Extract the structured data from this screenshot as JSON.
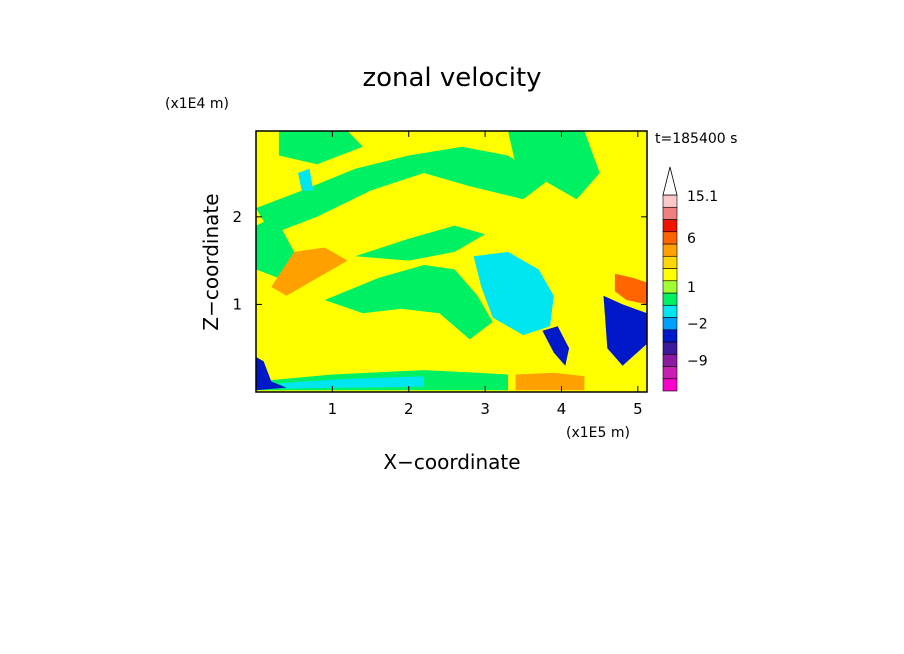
{
  "chart_data": {
    "type": "heatmap",
    "title": "zonal velocity",
    "xlabel": "X−coordinate",
    "ylabel": "Z−coordinate",
    "x_unit": "(x1E5 m)",
    "y_unit": "(x1E4 m)",
    "time_label": "t=185400 s",
    "xlim": [
      0,
      5.12
    ],
    "ylim": [
      0,
      2.98
    ],
    "x_ticks": [
      1,
      2,
      3,
      4,
      5
    ],
    "y_ticks": [
      1,
      2
    ],
    "grid": false,
    "colorbar": {
      "position": "right",
      "levels": [
        {
          "color": "#ff00cc"
        },
        {
          "color": "#c81eb4"
        },
        {
          "color": "#8c1aa0"
        },
        {
          "color": "#3c1aa0"
        },
        {
          "color": "#0019c8"
        },
        {
          "color": "#00a0ff"
        },
        {
          "color": "#00e6f0"
        },
        {
          "color": "#00f064"
        },
        {
          "color": "#a0ff32"
        },
        {
          "color": "#ffff00"
        },
        {
          "color": "#ffd700"
        },
        {
          "color": "#ffa000"
        },
        {
          "color": "#ff6400"
        },
        {
          "color": "#f01400"
        },
        {
          "color": "#f08080"
        },
        {
          "color": "#fac8c8"
        },
        {
          "color": "#ffffff"
        }
      ],
      "labels": [
        {
          "text": "−9",
          "value": -9
        },
        {
          "text": "−2",
          "value": -2
        },
        {
          "text": "1",
          "value": 1
        },
        {
          "text": "6",
          "value": 6
        },
        {
          "text": "15.1",
          "value": 15.1
        }
      ]
    },
    "regions": [
      {
        "name": "background",
        "color": "#ffff00"
      },
      {
        "name": "green-band-upper",
        "color": "#00f064",
        "points": [
          [
            0,
            2.1
          ],
          [
            0.6,
            2.3
          ],
          [
            1.3,
            2.55
          ],
          [
            2.0,
            2.7
          ],
          [
            2.7,
            2.8
          ],
          [
            3.3,
            2.7
          ],
          [
            3.8,
            2.4
          ],
          [
            3.5,
            2.2
          ],
          [
            2.8,
            2.35
          ],
          [
            2.2,
            2.5
          ],
          [
            1.5,
            2.3
          ],
          [
            0.8,
            2.0
          ],
          [
            0.2,
            1.8
          ]
        ]
      },
      {
        "name": "green-upper-right",
        "color": "#00f064",
        "points": [
          [
            3.3,
            2.98
          ],
          [
            4.3,
            2.98
          ],
          [
            4.5,
            2.5
          ],
          [
            4.2,
            2.2
          ],
          [
            3.8,
            2.4
          ],
          [
            3.4,
            2.6
          ]
        ]
      },
      {
        "name": "green-top-left",
        "color": "#00f064",
        "points": [
          [
            0.3,
            2.98
          ],
          [
            1.2,
            2.98
          ],
          [
            1.4,
            2.8
          ],
          [
            0.8,
            2.6
          ],
          [
            0.3,
            2.7
          ]
        ]
      },
      {
        "name": "green-wedge-middle",
        "color": "#00f064",
        "points": [
          [
            0.9,
            1.05
          ],
          [
            1.6,
            1.3
          ],
          [
            2.2,
            1.45
          ],
          [
            2.6,
            1.4
          ],
          [
            2.9,
            1.1
          ],
          [
            3.1,
            0.8
          ],
          [
            2.8,
            0.6
          ],
          [
            2.4,
            0.9
          ],
          [
            1.9,
            0.95
          ],
          [
            1.4,
            0.9
          ]
        ]
      },
      {
        "name": "green-band-mid",
        "color": "#00f064",
        "points": [
          [
            1.3,
            1.55
          ],
          [
            2.0,
            1.75
          ],
          [
            2.6,
            1.9
          ],
          [
            3.0,
            1.8
          ],
          [
            2.6,
            1.6
          ],
          [
            2.0,
            1.5
          ]
        ]
      },
      {
        "name": "green-left-upper",
        "color": "#00f064",
        "points": [
          [
            0,
            1.9
          ],
          [
            0.25,
            2.0
          ],
          [
            0.5,
            1.6
          ],
          [
            0.3,
            1.3
          ],
          [
            0,
            1.4
          ]
        ]
      },
      {
        "name": "green-bottom-band",
        "color": "#00f064",
        "points": [
          [
            0,
            0.12
          ],
          [
            1.0,
            0.2
          ],
          [
            2.2,
            0.25
          ],
          [
            2.9,
            0.22
          ],
          [
            3.3,
            0.2
          ],
          [
            3.3,
            0.02
          ],
          [
            0,
            0.02
          ]
        ]
      },
      {
        "name": "cyan-center",
        "color": "#00e6f0",
        "points": [
          [
            2.85,
            1.55
          ],
          [
            3.3,
            1.6
          ],
          [
            3.7,
            1.4
          ],
          [
            3.9,
            1.1
          ],
          [
            3.85,
            0.75
          ],
          [
            3.5,
            0.65
          ],
          [
            3.1,
            0.85
          ],
          [
            2.95,
            1.2
          ]
        ]
      },
      {
        "name": "cyan-bottom",
        "color": "#00e6f0",
        "points": [
          [
            0.3,
            0.1
          ],
          [
            1.2,
            0.15
          ],
          [
            2.2,
            0.18
          ],
          [
            2.2,
            0.06
          ],
          [
            0.4,
            0.04
          ]
        ]
      },
      {
        "name": "cyan-top-left",
        "color": "#00e6f0",
        "points": [
          [
            0.55,
            2.5
          ],
          [
            0.7,
            2.55
          ],
          [
            0.75,
            2.3
          ],
          [
            0.6,
            2.3
          ]
        ]
      },
      {
        "name": "blue-lower-right",
        "color": "#0019c8",
        "points": [
          [
            3.75,
            0.7
          ],
          [
            3.95,
            0.75
          ],
          [
            4.1,
            0.5
          ],
          [
            4.05,
            0.3
          ],
          [
            3.9,
            0.45
          ]
        ]
      },
      {
        "name": "blue-right-edge",
        "color": "#0019c8",
        "points": [
          [
            4.55,
            1.1
          ],
          [
            4.8,
            1.0
          ],
          [
            5.12,
            0.9
          ],
          [
            5.12,
            0.55
          ],
          [
            4.8,
            0.3
          ],
          [
            4.6,
            0.5
          ]
        ]
      },
      {
        "name": "blue-bottom-left",
        "color": "#0019c8",
        "points": [
          [
            0,
            0.4
          ],
          [
            0.1,
            0.35
          ],
          [
            0.2,
            0.12
          ],
          [
            0.4,
            0.05
          ],
          [
            0,
            0.02
          ]
        ]
      },
      {
        "name": "orange-right",
        "color": "#ff6400",
        "points": [
          [
            4.7,
            1.35
          ],
          [
            4.95,
            1.3
          ],
          [
            5.12,
            1.25
          ],
          [
            5.12,
            1.0
          ],
          [
            4.85,
            1.05
          ],
          [
            4.7,
            1.15
          ]
        ]
      },
      {
        "name": "orange-bottom",
        "color": "#ffa000",
        "points": [
          [
            3.4,
            0.2
          ],
          [
            3.9,
            0.22
          ],
          [
            4.3,
            0.18
          ],
          [
            4.3,
            0.02
          ],
          [
            3.4,
            0.02
          ]
        ]
      },
      {
        "name": "orange-left-wedge",
        "color": "#ffa000",
        "points": [
          [
            0.2,
            1.2
          ],
          [
            0.5,
            1.6
          ],
          [
            0.9,
            1.65
          ],
          [
            1.2,
            1.5
          ],
          [
            0.8,
            1.3
          ],
          [
            0.4,
            1.1
          ]
        ]
      }
    ]
  }
}
